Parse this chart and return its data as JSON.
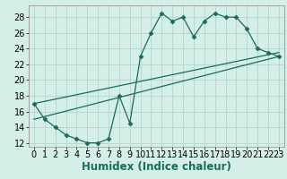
{
  "xlabel": "Humidex (Indice chaleur)",
  "background_color": "#d4eee8",
  "grid_color": "#b8d8d0",
  "line_color": "#1a6b5e",
  "xlim": [
    -0.5,
    23.5
  ],
  "ylim": [
    11.5,
    29.5
  ],
  "xticks": [
    0,
    1,
    2,
    3,
    4,
    5,
    6,
    7,
    8,
    9,
    10,
    11,
    12,
    13,
    14,
    15,
    16,
    17,
    18,
    19,
    20,
    21,
    22,
    23
  ],
  "yticks": [
    12,
    14,
    16,
    18,
    20,
    22,
    24,
    26,
    28
  ],
  "curve1_x": [
    0,
    1,
    2,
    3,
    4,
    5,
    6,
    7,
    8,
    9,
    10,
    11,
    12,
    13,
    14,
    15,
    16,
    17,
    18,
    19,
    20,
    21,
    22,
    23
  ],
  "curve1_y": [
    17,
    15,
    14,
    13,
    12.5,
    12,
    12,
    12.5,
    18,
    14.5,
    23,
    26,
    28.5,
    27.5,
    28,
    25.5,
    27.5,
    28.5,
    28,
    28,
    26.5,
    24,
    23.5,
    23
  ],
  "line1_x": [
    0,
    23
  ],
  "line1_y": [
    15,
    23
  ],
  "line2_x": [
    0,
    23
  ],
  "line2_y": [
    17,
    23.5
  ],
  "fontsize_label": 8.5,
  "fontsize_tick": 7,
  "marker_size": 2.5
}
